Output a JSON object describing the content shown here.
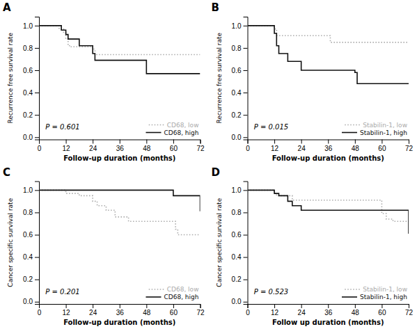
{
  "chart_data": [
    {
      "type": "step",
      "title": "A",
      "x_label": "Follow-up duration (months)",
      "y_label": "Recurrence free survival rate",
      "annotations": [
        "P = 0.601"
      ],
      "series": [
        {
          "name": "CD68, low",
          "color": "#aaaaaa",
          "line_style": "dotted",
          "x": [
            0,
            8,
            9,
            11,
            12,
            13,
            14,
            22,
            24,
            25,
            72
          ],
          "values": [
            1.0,
            1.0,
            0.97,
            0.94,
            0.88,
            0.82,
            0.81,
            0.81,
            0.79,
            0.74,
            0.74
          ]
        },
        {
          "name": "CD68, high",
          "color": "#111111",
          "line_style": "solid",
          "x": [
            0,
            7,
            10,
            12,
            13,
            18,
            22,
            24,
            25,
            27,
            36,
            48,
            50,
            72
          ],
          "values": [
            1.0,
            1.0,
            0.96,
            0.92,
            0.88,
            0.82,
            0.82,
            0.75,
            0.69,
            0.69,
            0.69,
            0.57,
            0.57,
            0.57
          ]
        }
      ],
      "xlim": [
        0,
        72
      ],
      "xticks": [
        0,
        12,
        24,
        36,
        48,
        60,
        72
      ],
      "ylim": [
        -0.02,
        1.08
      ],
      "yticks": [
        {
          "value": 0,
          "label": "0.0"
        },
        0.2,
        0.4,
        0.6,
        0.8,
        {
          "value": 1,
          "label": "1.0"
        }
      ],
      "legend": "lower right",
      "grid": false
    },
    {
      "type": "step",
      "title": "B",
      "x_label": "Follow-up duration (months)",
      "y_label": "Recurrence free survival rate",
      "annotations": [
        "P = 0.015"
      ],
      "series": [
        {
          "name": "Stabilin-1, low",
          "color": "#aaaaaa",
          "line_style": "dotted",
          "x": [
            0,
            10,
            12,
            13,
            36,
            37,
            48,
            72
          ],
          "values": [
            1.0,
            1.0,
            0.97,
            0.91,
            0.91,
            0.85,
            0.85,
            0.85
          ]
        },
        {
          "name": "Stabilin-1, high",
          "color": "#111111",
          "line_style": "solid",
          "x": [
            0,
            8,
            12,
            13,
            14,
            16,
            18,
            20,
            24,
            36,
            48,
            49,
            72
          ],
          "values": [
            1.0,
            1.0,
            0.93,
            0.82,
            0.75,
            0.75,
            0.68,
            0.68,
            0.6,
            0.6,
            0.58,
            0.48,
            0.48
          ]
        }
      ],
      "xlim": [
        0,
        72
      ],
      "xticks": [
        0,
        12,
        24,
        36,
        48,
        60,
        72
      ],
      "ylim": [
        -0.02,
        1.08
      ],
      "yticks": [
        {
          "value": 0,
          "label": "0.0"
        },
        0.2,
        0.4,
        0.6,
        0.8,
        {
          "value": 1,
          "label": "1.0"
        }
      ],
      "legend": "lower right",
      "grid": false
    },
    {
      "type": "step",
      "title": "C",
      "x_label": "Follow-up duration (months)",
      "y_label": "Cancer specific survival rate",
      "annotations": [
        "P = 0.201"
      ],
      "series": [
        {
          "name": "CD68, low",
          "color": "#aaaaaa",
          "line_style": "dotted",
          "x": [
            0,
            10,
            12,
            18,
            24,
            26,
            30,
            34,
            36,
            40,
            48,
            60,
            61,
            62,
            72
          ],
          "values": [
            1.0,
            1.0,
            0.97,
            0.95,
            0.9,
            0.86,
            0.82,
            0.76,
            0.76,
            0.72,
            0.72,
            0.72,
            0.65,
            0.6,
            0.6
          ]
        },
        {
          "name": "CD68, high",
          "color": "#111111",
          "line_style": "solid",
          "x": [
            0,
            12,
            18,
            60,
            62,
            70,
            72
          ],
          "values": [
            1.0,
            1.0,
            1.0,
            0.95,
            0.95,
            0.95,
            0.81
          ]
        }
      ],
      "xlim": [
        0,
        72
      ],
      "xticks": [
        0,
        12,
        24,
        36,
        48,
        60,
        72
      ],
      "ylim": [
        -0.02,
        1.08
      ],
      "yticks": [
        {
          "value": 0,
          "label": "0.0"
        },
        0.2,
        0.4,
        0.6,
        0.8,
        {
          "value": 1,
          "label": "1.0"
        }
      ],
      "legend": "lower right",
      "grid": false
    },
    {
      "type": "step",
      "title": "D",
      "x_label": "Follow up duration (months)",
      "y_label": "Cancer specific survival rate",
      "annotations": [
        "P = 0.523"
      ],
      "series": [
        {
          "name": "Stabilin-1, low",
          "color": "#aaaaaa",
          "line_style": "dotted",
          "x": [
            0,
            9,
            12,
            13,
            18,
            20,
            24,
            30,
            36,
            60,
            62,
            65,
            72
          ],
          "values": [
            1.0,
            1.0,
            0.97,
            0.95,
            0.95,
            0.91,
            0.91,
            0.91,
            0.91,
            0.79,
            0.74,
            0.72,
            0.72
          ]
        },
        {
          "name": "Stabilin-1, high",
          "color": "#111111",
          "line_style": "solid",
          "x": [
            0,
            8,
            12,
            14,
            18,
            20,
            24,
            26,
            36,
            60,
            62,
            70,
            72
          ],
          "values": [
            1.0,
            1.0,
            0.97,
            0.95,
            0.9,
            0.86,
            0.82,
            0.82,
            0.82,
            0.82,
            0.82,
            0.82,
            0.61
          ]
        }
      ],
      "xlim": [
        0,
        72
      ],
      "xticks": [
        0,
        12,
        24,
        36,
        48,
        60,
        72
      ],
      "ylim": [
        -0.02,
        1.08
      ],
      "yticks": [
        {
          "value": 0,
          "label": "0.0"
        },
        0.2,
        0.4,
        0.6,
        0.8,
        {
          "value": 1,
          "label": "1.0"
        }
      ],
      "legend": "lower right",
      "grid": false
    }
  ]
}
